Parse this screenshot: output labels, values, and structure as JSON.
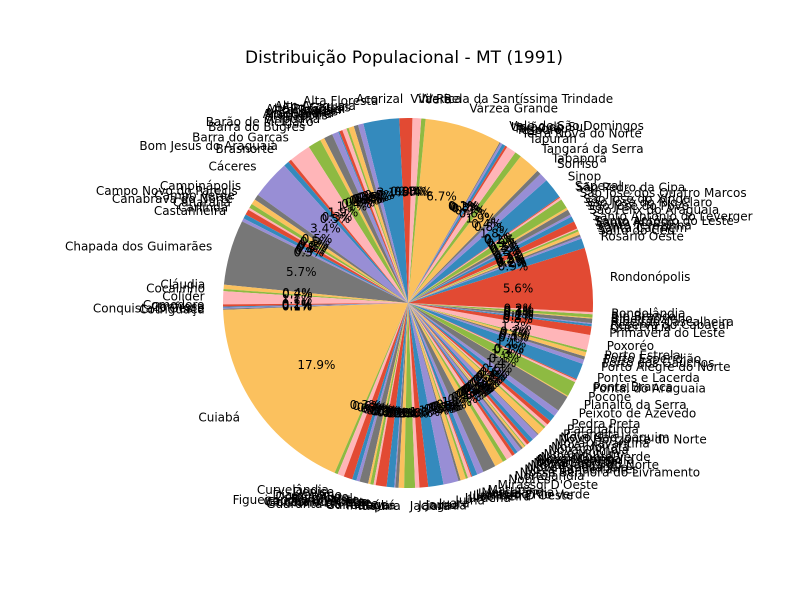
{
  "chart_data": {
    "type": "pie",
    "title": "Distribuição Populacional - MT (1991)",
    "start_angle_deg": 90,
    "direction": "counterclockwise",
    "palette": [
      "#e24a33",
      "#348abd",
      "#988ed5",
      "#777777",
      "#fbc15e",
      "#8eba42",
      "#ffb5b8"
    ],
    "slices": [
      {
        "label": "Acorizal",
        "value": 0.8
      },
      {
        "label": "Alta Floresta",
        "value": 3.3
      },
      {
        "label": "Alto Araguaia",
        "value": 0.5
      },
      {
        "label": "Alto Garças",
        "value": 0.4
      },
      {
        "label": "Alto Paraguai",
        "value": 0.5
      },
      {
        "label": "Alto Taquari",
        "value": 0.2
      },
      {
        "label": "Apiacás",
        "value": 0.4
      },
      {
        "label": "Araguaiana",
        "value": 0.3
      },
      {
        "label": "Araguainha",
        "value": 0.1
      },
      {
        "label": "Arenápolis",
        "value": 0.6
      },
      {
        "label": "Aripuanã",
        "value": 0.8
      },
      {
        "label": "Barão de Melgaço",
        "value": 0.4
      },
      {
        "label": "Barra do Bugres",
        "value": 1.2
      },
      {
        "label": "Barra do Garças",
        "value": 2.0
      },
      {
        "label": "Bom Jesus do Araguaia",
        "value": 0.3
      },
      {
        "label": "Brasnorte",
        "value": 0.5
      },
      {
        "label": "Cáceres",
        "value": 3.6
      },
      {
        "label": "Campinápolis",
        "value": 0.5
      },
      {
        "label": "Campo Novo do Parecis",
        "value": 0.5
      },
      {
        "label": "Campo Verde",
        "value": 0.4
      },
      {
        "label": "Canabrava do Norte",
        "value": 0.2
      },
      {
        "label": "Canarana",
        "value": 0.5
      },
      {
        "label": "Carlinda",
        "value": 0.4
      },
      {
        "label": "Castanheira",
        "value": 0.3
      },
      {
        "label": "Chapada dos Guimarães",
        "value": 6.0
      },
      {
        "label": "Cláudia",
        "value": 0.4
      },
      {
        "label": "Cocalinho",
        "value": 0.2
      },
      {
        "label": "Colíder",
        "value": 1.2
      },
      {
        "label": "Comodoro",
        "value": 0.2
      },
      {
        "label": "Confresa",
        "value": 0.1
      },
      {
        "label": "Conquista D'Oeste",
        "value": 0.1
      },
      {
        "label": "Cotriguaçu",
        "value": 0.1
      },
      {
        "label": "Cuiabá",
        "value": 18.9
      },
      {
        "label": "Curvelândia",
        "value": 0.3
      },
      {
        "label": "Denise",
        "value": 0.6
      },
      {
        "label": "Diamantino",
        "value": 0.8
      },
      {
        "label": "Dom Aquino",
        "value": 0.4
      },
      {
        "label": "Feliz Natal",
        "value": 0.3
      },
      {
        "label": "Figueirópolis D'Oeste",
        "value": 0.8
      },
      {
        "label": "Gaúcha do Norte",
        "value": 0.2
      },
      {
        "label": "General Carneiro",
        "value": 0.3
      },
      {
        "label": "Glória D'Oeste",
        "value": 0.2
      },
      {
        "label": "Guarantã do Norte",
        "value": 1.0
      },
      {
        "label": "Guiratinga",
        "value": 0.7
      },
      {
        "label": "Indiavaí",
        "value": 0.1
      },
      {
        "label": "Itaúba",
        "value": 0.3
      },
      {
        "label": "Itiquira",
        "value": 0.5
      },
      {
        "label": "Jaciara",
        "value": 1.0
      },
      {
        "label": "Jangada",
        "value": 0.4
      },
      {
        "label": "Jauru",
        "value": 0.8
      },
      {
        "label": "Juara",
        "value": 1.4
      },
      {
        "label": "Juína",
        "value": 1.4
      },
      {
        "label": "Juruena",
        "value": 0.2
      },
      {
        "label": "Juscimeira",
        "value": 0.5
      },
      {
        "label": "Lambari D'Oeste",
        "value": 0.2
      },
      {
        "label": "Lucas do Rio Verde",
        "value": 0.3
      },
      {
        "label": "Luciara",
        "value": 0.1
      },
      {
        "label": "Marcelândia",
        "value": 0.5
      },
      {
        "label": "Matupá",
        "value": 0.6
      },
      {
        "label": "Mirassol D'Oeste",
        "value": 1.2
      },
      {
        "label": "Nobres",
        "value": 0.8
      },
      {
        "label": "Nortelândia",
        "value": 0.4
      },
      {
        "label": "Nossa Senhora do Livramento",
        "value": 0.6
      },
      {
        "label": "Nova Bandeirantes",
        "value": 0.3
      },
      {
        "label": "Nova Brasilândia",
        "value": 0.3
      },
      {
        "label": "Nova Canaã do Norte",
        "value": 0.4
      },
      {
        "label": "Nova Guarita",
        "value": 0.2
      },
      {
        "label": "Nova Lacerda",
        "value": 0.2
      },
      {
        "label": "Nova Marilândia",
        "value": 0.1
      },
      {
        "label": "Nova Maringá",
        "value": 0.2
      },
      {
        "label": "Nova Monte Verde",
        "value": 0.3
      },
      {
        "label": "Nova Mutum",
        "value": 0.4
      },
      {
        "label": "Nova Olímpia",
        "value": 0.6
      },
      {
        "label": "Nova Ubiratã",
        "value": 0.1
      },
      {
        "label": "Nova Xavantina",
        "value": 0.7
      },
      {
        "label": "Novo Horizonte do Norte",
        "value": 0.2
      },
      {
        "label": "Novo São Joaquim",
        "value": 0.3
      },
      {
        "label": "Paranaíta",
        "value": 0.4
      },
      {
        "label": "Paranatinga",
        "value": 0.6
      },
      {
        "label": "Pedra Preta",
        "value": 0.6
      },
      {
        "label": "Peixoto de Azevedo",
        "value": 1.5
      },
      {
        "label": "Planalto da Serra",
        "value": 0.1
      },
      {
        "label": "Poconé",
        "value": 1.4
      },
      {
        "label": "Pontal do Araguaia",
        "value": 0.2
      },
      {
        "label": "Ponte Branca",
        "value": 0.1
      },
      {
        "label": "Pontes e Lacerda",
        "value": 1.5
      },
      {
        "label": "Porto Alegre do Norte",
        "value": 0.4
      },
      {
        "label": "Porto dos Gaúchos",
        "value": 0.3
      },
      {
        "label": "Porto Esperidião",
        "value": 0.4
      },
      {
        "label": "Porto Estrela",
        "value": 0.2
      },
      {
        "label": "Poxoréo",
        "value": 1.4
      },
      {
        "label": "Primavera do Leste",
        "value": 0.8
      },
      {
        "label": "Querência",
        "value": 0.2
      },
      {
        "label": "Reserva do Cabaçal",
        "value": 0.1
      },
      {
        "label": "Ribeirão Cascalheira",
        "value": 0.4
      },
      {
        "label": "Ribeirãozinho",
        "value": 0.1
      },
      {
        "label": "Rio Branco",
        "value": 0.3
      },
      {
        "label": "Rondolândia",
        "value": 0.2
      },
      {
        "label": "Rondonópolis",
        "value": 5.9
      },
      {
        "label": "Rosário Oeste",
        "value": 0.9
      },
      {
        "label": "Salto do Céu",
        "value": 0.2
      },
      {
        "label": "Santa Carmem",
        "value": 0.2
      },
      {
        "label": "Santa Terezinha",
        "value": 0.3
      },
      {
        "label": "Santo Afonso",
        "value": 0.2
      },
      {
        "label": "Santo Antônio do Leste",
        "value": 0.1
      },
      {
        "label": "Santo Antônio do Leverger",
        "value": 0.7
      },
      {
        "label": "São Félix do Araguaia",
        "value": 0.5
      },
      {
        "label": "São José do Povo",
        "value": 0.2
      },
      {
        "label": "São José do Rio Claro",
        "value": 0.5
      },
      {
        "label": "São José do Xingu",
        "value": 0.2
      },
      {
        "label": "São José dos Quatro Marcos",
        "value": 0.9
      },
      {
        "label": "São Pedro da Cipa",
        "value": 0.2
      },
      {
        "label": "Sapezal",
        "value": 0.1
      },
      {
        "label": "Sinop",
        "value": 1.9
      },
      {
        "label": "Sorriso",
        "value": 0.8
      },
      {
        "label": "Tabaporã",
        "value": 0.4
      },
      {
        "label": "Tangará da Serra",
        "value": 2.0
      },
      {
        "label": "Tapurah",
        "value": 0.6
      },
      {
        "label": "Terra Nova do Norte",
        "value": 0.9
      },
      {
        "label": "Tesouro",
        "value": 0.2
      },
      {
        "label": "Torixoréu",
        "value": 0.3
      },
      {
        "label": "União do Sul",
        "value": 0.2
      },
      {
        "label": "Vale de São Domingos",
        "value": 0.1
      },
      {
        "label": "Várzea Grande",
        "value": 7.1
      },
      {
        "label": "Vera",
        "value": 0.4
      },
      {
        "label": "Vila Bela da Santíssima Trindade",
        "value": 0.8
      },
      {
        "label": "Vila Rica",
        "value": 0.4
      }
    ]
  }
}
